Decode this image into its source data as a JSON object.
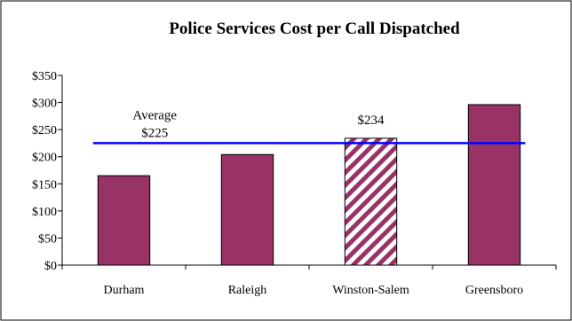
{
  "chart_data": {
    "type": "bar",
    "title": "Police Services Cost per Call Dispatched",
    "xlabel": "",
    "ylabel": "",
    "categories": [
      "Durham",
      "Raleigh",
      "Winston-Salem",
      "Greensboro"
    ],
    "values": [
      165,
      204,
      234,
      296
    ],
    "highlight_index": 2,
    "highlight_label": "$234",
    "ylim": [
      0,
      350
    ],
    "yticks": [
      0,
      50,
      100,
      150,
      200,
      250,
      300,
      350
    ],
    "ytick_labels": [
      "$0",
      "$50",
      "$100",
      "$150",
      "$200",
      "$250",
      "$300",
      "$350"
    ],
    "grid": false,
    "legend": "none",
    "average": {
      "value": 225,
      "label_line1": "Average",
      "label_line2": "$225"
    },
    "colors": {
      "bar": "#993366",
      "bar_outline": "#000000",
      "average_line": "#0000ff",
      "hatch_bg": "#ffffff"
    }
  }
}
